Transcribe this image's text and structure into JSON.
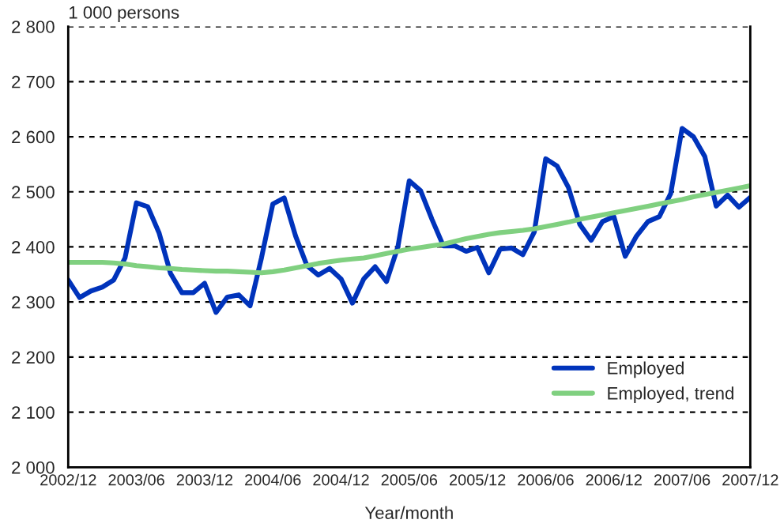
{
  "chart_data": {
    "type": "line",
    "ylabel": "1 000 persons",
    "xlabel": "Year/month",
    "categories": [
      "2002/12",
      null,
      null,
      null,
      null,
      null,
      "2003/06",
      null,
      null,
      null,
      null,
      null,
      "2003/12",
      null,
      null,
      null,
      null,
      null,
      "2004/06",
      null,
      null,
      null,
      null,
      null,
      "2004/12",
      null,
      null,
      null,
      null,
      null,
      "2005/06",
      null,
      null,
      null,
      null,
      null,
      "2005/12",
      null,
      null,
      null,
      null,
      null,
      "2006/06",
      null,
      null,
      null,
      null,
      null,
      "2006/12",
      null,
      null,
      null,
      null,
      null,
      "2007/06",
      null,
      null,
      null,
      null,
      null,
      "2007/12"
    ],
    "series": [
      {
        "name": "Employed",
        "color": "#0033bb",
        "values": [
          2340,
          2308,
          2320,
          2327,
          2340,
          2380,
          2480,
          2473,
          2425,
          2352,
          2317,
          2317,
          2334,
          2281,
          2309,
          2313,
          2293,
          2380,
          2478,
          2489,
          2420,
          2366,
          2349,
          2361,
          2342,
          2298,
          2342,
          2364,
          2337,
          2400,
          2520,
          2502,
          2450,
          2402,
          2402,
          2392,
          2399,
          2353,
          2396,
          2398,
          2386,
          2427,
          2560,
          2547,
          2508,
          2441,
          2412,
          2446,
          2455,
          2383,
          2420,
          2446,
          2455,
          2497,
          2615,
          2600,
          2564,
          2474,
          2494,
          2472,
          2490
        ]
      },
      {
        "name": "Employed, trend",
        "color": "#80d080",
        "values": [
          2372,
          2372,
          2372,
          2372,
          2371,
          2369,
          2366,
          2364,
          2362,
          2361,
          2359,
          2358,
          2357,
          2356,
          2356,
          2355,
          2354,
          2353,
          2355,
          2358,
          2362,
          2366,
          2370,
          2373,
          2376,
          2378,
          2380,
          2384,
          2388,
          2392,
          2396,
          2399,
          2402,
          2405,
          2410,
          2415,
          2419,
          2423,
          2426,
          2428,
          2430,
          2433,
          2437,
          2441,
          2445,
          2450,
          2454,
          2458,
          2462,
          2466,
          2470,
          2474,
          2478,
          2482,
          2486,
          2491,
          2495,
          2499,
          2503,
          2507,
          2511
        ]
      }
    ],
    "ylim": [
      2000,
      2800
    ],
    "yticks": [
      {
        "value": 2000,
        "label": "2 000"
      },
      {
        "value": 2100,
        "label": "2 100"
      },
      {
        "value": 2200,
        "label": "2 200"
      },
      {
        "value": 2300,
        "label": "2 300"
      },
      {
        "value": 2400,
        "label": "2 400"
      },
      {
        "value": 2500,
        "label": "2 500"
      },
      {
        "value": 2600,
        "label": "2 600"
      },
      {
        "value": 2700,
        "label": "2 700"
      },
      {
        "value": 2800,
        "label": "2 800"
      }
    ],
    "grid": "y",
    "legend": "bottom right",
    "line_style": "solid"
  }
}
